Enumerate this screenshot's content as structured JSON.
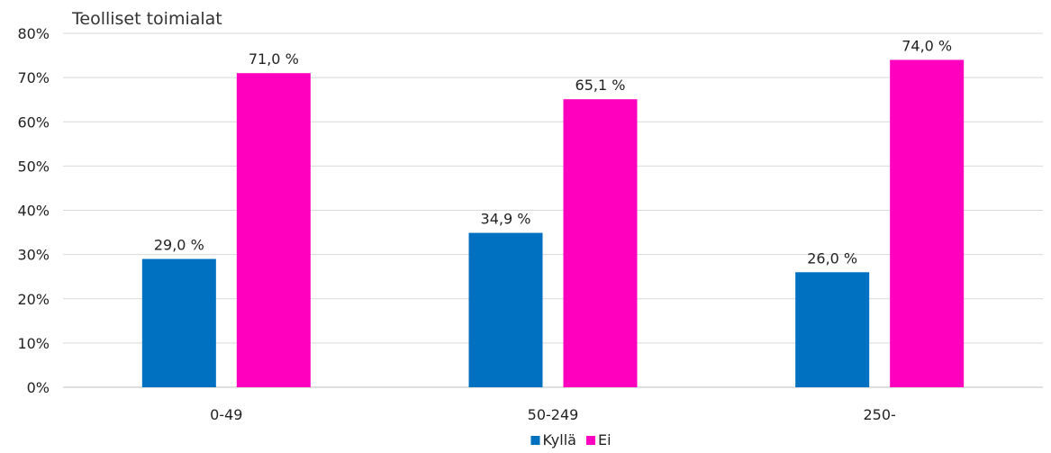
{
  "chart_data": {
    "type": "bar",
    "title": "Teolliset toimialat",
    "xlabel": "",
    "ylabel": "",
    "categories": [
      "0-49",
      "50-249",
      "250-"
    ],
    "series": [
      {
        "name": "Kyllä",
        "color": "#0070C0",
        "values": [
          29.0,
          34.9,
          26.0
        ],
        "labels": [
          "29,0 %",
          "34,9 %",
          "26,0 %"
        ]
      },
      {
        "name": "Ei",
        "color": "#FF00BF",
        "values": [
          71.0,
          65.1,
          74.0
        ],
        "labels": [
          "71,0 %",
          "65,1 %",
          "74,0 %"
        ]
      }
    ],
    "ylim": [
      0,
      80
    ],
    "yticks": [
      {
        "value": 0,
        "label": "0%"
      },
      {
        "value": 10,
        "label": "10%"
      },
      {
        "value": 20,
        "label": "20%"
      },
      {
        "value": 30,
        "label": "30%"
      },
      {
        "value": 40,
        "label": "40%"
      },
      {
        "value": 50,
        "label": "50%"
      },
      {
        "value": 60,
        "label": "60%"
      },
      {
        "value": 70,
        "label": "70%"
      },
      {
        "value": 80,
        "label": "80%"
      }
    ],
    "grid": true,
    "legend": "bottom"
  }
}
